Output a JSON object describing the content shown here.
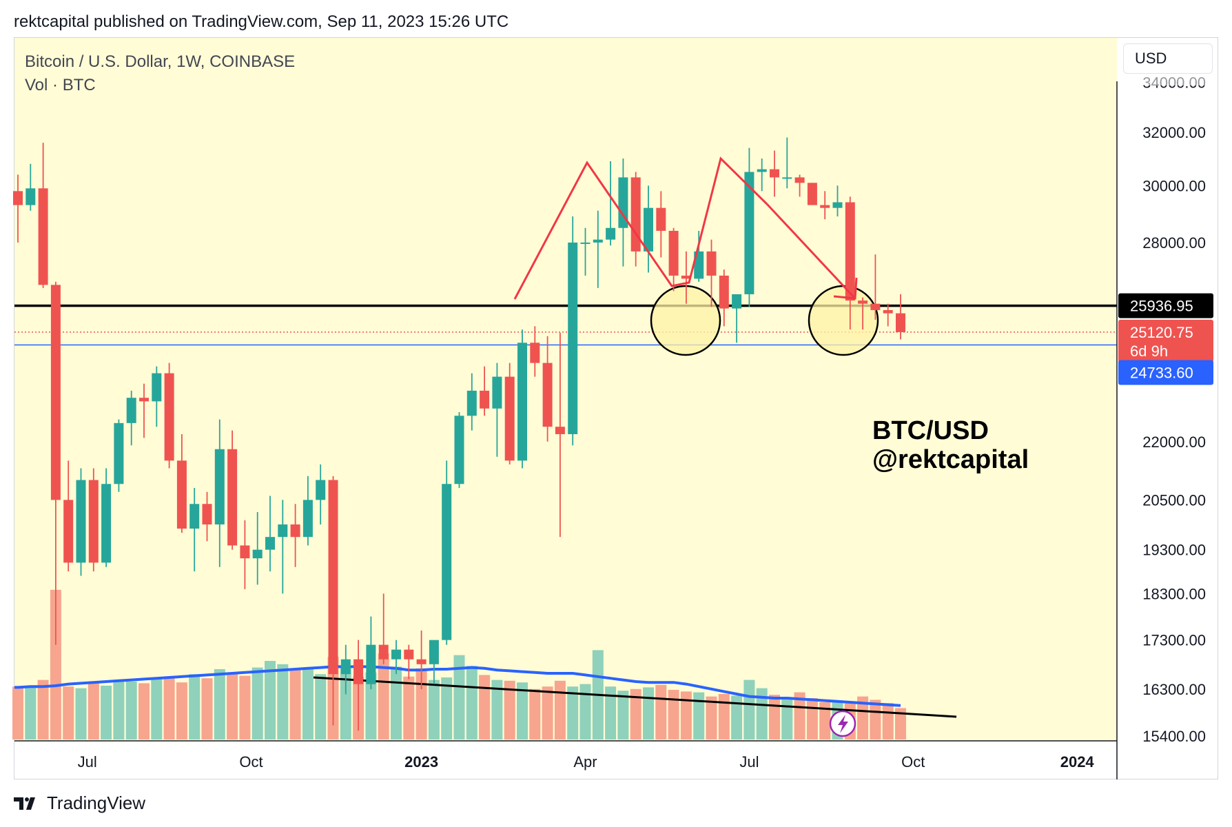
{
  "header": {
    "published": "rektcapital published on TradingView.com, Sep 11, 2023 15:26 UTC"
  },
  "legend": {
    "symbol": "Bitcoin / U.S. Dollar, 1W, COINBASE",
    "volume": "Vol · BTC"
  },
  "currency_button": "USD",
  "annotation": {
    "line1": "BTC/USD",
    "line2": "@rektcapital"
  },
  "footer": {
    "brand": "TradingView",
    "logo_icon": "tradingview-logo-icon"
  },
  "colors": {
    "background": "#fffcd6",
    "up": "#26a69a",
    "down": "#ef5350",
    "up_vol": "#8fd1bb",
    "down_vol": "#f7a58e",
    "ma": "#2962ff",
    "support": "#000000",
    "pattern": "#f23645",
    "circle_fill": "#fff3a6"
  },
  "chart_data": {
    "type": "candlestick",
    "title": "",
    "scale": "log",
    "y_tick_labels": [
      "34000.00",
      "32000.00",
      "30000.00",
      "28000.00",
      "22000.00",
      "20500.00",
      "19300.00",
      "18300.00",
      "17300.00",
      "16300.00",
      "15400.00"
    ],
    "x_tick_labels": [
      {
        "label": "Jul",
        "bold": false,
        "week_index": 5.5
      },
      {
        "label": "Oct",
        "bold": false,
        "week_index": 18.5
      },
      {
        "label": "2023",
        "bold": true,
        "week_index": 32
      },
      {
        "label": "Apr",
        "bold": false,
        "week_index": 45
      },
      {
        "label": "Jul",
        "bold": false,
        "week_index": 58
      },
      {
        "label": "Oct",
        "bold": false,
        "week_index": 71
      },
      {
        "label": "2024",
        "bold": true,
        "week_index": 84
      }
    ],
    "price_labels": [
      {
        "price": 25936.95,
        "text": "25936.95",
        "style": "black"
      },
      {
        "price": 25120.75,
        "text": "25120.75",
        "countdown": "6d 9h",
        "style": "red"
      },
      {
        "price": 24733.6,
        "text": "24733.60",
        "style": "blue"
      }
    ],
    "horizontal_levels": [
      {
        "price": 25936.95,
        "style": "solid-black"
      },
      {
        "price": 25120.75,
        "style": "dotted-red"
      },
      {
        "price": 24733.6,
        "style": "solid-blue"
      }
    ],
    "candles": [
      [
        29800,
        30400,
        28000,
        29300
      ],
      [
        29300,
        30800,
        29100,
        29900
      ],
      [
        29900,
        31600,
        26500,
        26600
      ],
      [
        26600,
        26700,
        17200,
        20500
      ],
      [
        20500,
        21500,
        18800,
        19000
      ],
      [
        19000,
        21300,
        18700,
        21000
      ],
      [
        21000,
        21300,
        18800,
        19000
      ],
      [
        19000,
        21300,
        18900,
        20900
      ],
      [
        20900,
        22600,
        20700,
        22500
      ],
      [
        22500,
        23400,
        21900,
        23200
      ],
      [
        23200,
        23600,
        22100,
        23100
      ],
      [
        23100,
        24100,
        22400,
        23900
      ],
      [
        23900,
        24200,
        21300,
        21500
      ],
      [
        21500,
        22200,
        19700,
        19800
      ],
      [
        19800,
        20800,
        18800,
        20400
      ],
      [
        20400,
        20700,
        19500,
        19900
      ],
      [
        19900,
        22600,
        18900,
        21800
      ],
      [
        21800,
        22300,
        19300,
        19400
      ],
      [
        19400,
        20000,
        18400,
        19100
      ],
      [
        19100,
        20200,
        18500,
        19300
      ],
      [
        19300,
        20600,
        18800,
        19600
      ],
      [
        19600,
        20500,
        18300,
        19900
      ],
      [
        19900,
        20400,
        18900,
        19600
      ],
      [
        19600,
        21100,
        19400,
        20500
      ],
      [
        20500,
        21400,
        19900,
        21000
      ],
      [
        21000,
        21100,
        15600,
        16600
      ],
      [
        16600,
        17200,
        16200,
        16900
      ],
      [
        16900,
        17300,
        15500,
        16400
      ],
      [
        16400,
        17800,
        16300,
        17200
      ],
      [
        17200,
        18300,
        16800,
        16900
      ],
      [
        16900,
        17300,
        16600,
        17100
      ],
      [
        17100,
        17200,
        16500,
        16900
      ],
      [
        16900,
        17500,
        16300,
        16800
      ],
      [
        16800,
        17200,
        16400,
        17300
      ],
      [
        17300,
        21500,
        17200,
        20900
      ],
      [
        20900,
        22800,
        20800,
        22700
      ],
      [
        22700,
        23900,
        22300,
        23400
      ],
      [
        23400,
        24100,
        22700,
        22900
      ],
      [
        22900,
        24200,
        21600,
        23800
      ],
      [
        23800,
        24200,
        21400,
        21500
      ],
      [
        21500,
        25200,
        21300,
        24800
      ],
      [
        24800,
        25300,
        23800,
        24200
      ],
      [
        24200,
        25000,
        22000,
        22400
      ],
      [
        22400,
        25100,
        19600,
        22200
      ],
      [
        22200,
        28900,
        21900,
        28000
      ],
      [
        28000,
        28500,
        26900,
        28000
      ],
      [
        28000,
        29100,
        26500,
        28100
      ],
      [
        28100,
        30900,
        27900,
        28500
      ],
      [
        28500,
        31000,
        27200,
        30300
      ],
      [
        30300,
        30500,
        27200,
        27700
      ],
      [
        27700,
        30000,
        27000,
        29200
      ],
      [
        29200,
        29800,
        27500,
        28400
      ],
      [
        28400,
        28500,
        26400,
        26900
      ],
      [
        26900,
        27700,
        26000,
        26800
      ],
      [
        26800,
        28400,
        26700,
        27700
      ],
      [
        27700,
        28100,
        25900,
        26900
      ],
      [
        26900,
        27100,
        25300,
        25850
      ],
      [
        25850,
        26200,
        24800,
        26300
      ],
      [
        26300,
        31400,
        25900,
        30500
      ],
      [
        30500,
        31000,
        29800,
        30600
      ],
      [
        30600,
        31300,
        29600,
        30300
      ],
      [
        30300,
        31800,
        29900,
        30300
      ],
      [
        30300,
        30400,
        29600,
        30100
      ],
      [
        30100,
        30100,
        29400,
        29300
      ],
      [
        29300,
        29800,
        28800,
        29200
      ],
      [
        29200,
        30000,
        28900,
        29400
      ],
      [
        29400,
        29600,
        25200,
        26100
      ],
      [
        26100,
        26200,
        25200,
        26000
      ],
      [
        26000,
        27600,
        25500,
        25800
      ],
      [
        25800,
        26000,
        25300,
        25700
      ],
      [
        25700,
        26300,
        24900,
        25120.75
      ]
    ],
    "volume": {
      "series_name": "",
      "relative_values": [
        64,
        65,
        72,
        181,
        64,
        62,
        68,
        65,
        72,
        70,
        68,
        75,
        76,
        69,
        79,
        74,
        85,
        81,
        77,
        87,
        95,
        91,
        86,
        85,
        79,
        100,
        88,
        76,
        81,
        104,
        88,
        76,
        86,
        72,
        75,
        102,
        89,
        78,
        72,
        71,
        69,
        61,
        64,
        71,
        64,
        67,
        108,
        64,
        59,
        61,
        63,
        66,
        60,
        58,
        57,
        52,
        55,
        53,
        72,
        62,
        54,
        51,
        57,
        50,
        45,
        47,
        46,
        52,
        48,
        44,
        38
      ]
    },
    "moving_average_relative": [
      63,
      64,
      64,
      65,
      67,
      68,
      69,
      70,
      71,
      72,
      73,
      74,
      75,
      76,
      77,
      78,
      79,
      80,
      81,
      82,
      83,
      84,
      85,
      86,
      87,
      88,
      88,
      88,
      88,
      87,
      86,
      84,
      84,
      85,
      85,
      86,
      87,
      86,
      84,
      83,
      82,
      81,
      80,
      80,
      80,
      78,
      76,
      74,
      72,
      70,
      69,
      69,
      69,
      67,
      64,
      61,
      58,
      55,
      52,
      51,
      50,
      50,
      49,
      48,
      47,
      46,
      45,
      44,
      43,
      42,
      41
    ]
  }
}
